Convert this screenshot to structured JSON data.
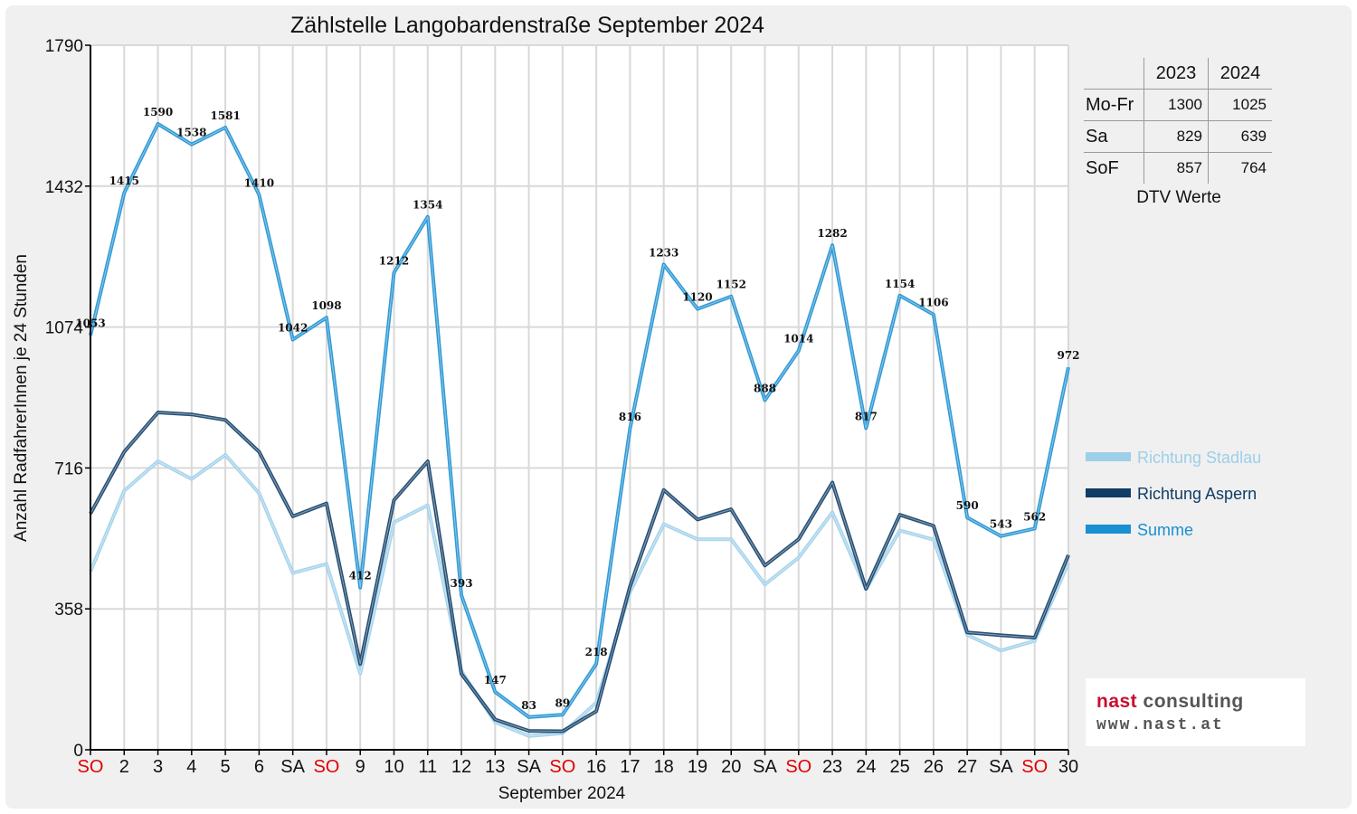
{
  "chart_data": {
    "type": "line",
    "title": "Zählstelle Langobardenstraße September 2024",
    "xlabel": "September 2024",
    "ylabel": "Anzahl RadfahrerInnen je 24 Stunden",
    "ylim": [
      0,
      1790
    ],
    "yticks": [
      "0",
      "358",
      "716",
      "1074",
      "1432",
      "1790"
    ],
    "grid": true,
    "legend_position": "right",
    "categories": [
      "SO",
      "2",
      "3",
      "4",
      "5",
      "6",
      "SA",
      "SO",
      "9",
      "10",
      "11",
      "12",
      "13",
      "SA",
      "SO",
      "16",
      "17",
      "18",
      "19",
      "20",
      "SA",
      "SO",
      "23",
      "24",
      "25",
      "26",
      "27",
      "SA",
      "SO",
      "30"
    ],
    "weekend_color": "#e00000",
    "series": [
      {
        "name": "Richtung Stadlau",
        "color": "#9dcfea",
        "values": [
          453,
          658,
          733,
          688,
          749,
          652,
          449,
          472,
          194,
          578,
          621,
          200,
          70,
          35,
          42,
          120,
          401,
          573,
          535,
          535,
          420,
          488,
          603,
          408,
          557,
          534,
          292,
          252,
          277,
          475
        ]
      },
      {
        "name": "Richtung Aspern",
        "color": "#0f3d66",
        "values": [
          600,
          757,
          857,
          852,
          838,
          757,
          593,
          626,
          218,
          634,
          733,
          193,
          77,
          48,
          47,
          98,
          415,
          660,
          585,
          611,
          468,
          535,
          679,
          409,
          597,
          569,
          298,
          291,
          285,
          495
        ]
      },
      {
        "name": "Summe",
        "color": "#1a8fd2",
        "values": [
          1053,
          1415,
          1590,
          1538,
          1581,
          1410,
          1042,
          1098,
          412,
          1212,
          1354,
          393,
          147,
          83,
          89,
          218,
          816,
          1233,
          1120,
          1152,
          888,
          1014,
          1282,
          817,
          1154,
          1106,
          590,
          543,
          562,
          972
        ]
      }
    ],
    "data_labels": [
      "1053",
      "1415",
      "1590",
      "1538",
      "1581",
      "1410",
      "1042",
      "1098",
      "412",
      "1212",
      "1354",
      "393",
      "147",
      "83",
      "89",
      "218",
      "816",
      "1233",
      "1120",
      "1152",
      "888",
      "1014",
      "1282",
      "817",
      "1154",
      "1106",
      "590",
      "543",
      "562",
      "972"
    ]
  },
  "dtv_table": {
    "header": [
      "",
      "2023",
      "2024"
    ],
    "rows": [
      {
        "label": "Mo-Fr",
        "v2023": "1300",
        "v2024": "1025"
      },
      {
        "label": "Sa",
        "v2023": "829",
        "v2024": "639"
      },
      {
        "label": "SoF",
        "v2023": "857",
        "v2024": "764"
      }
    ],
    "caption": "DTV Werte"
  },
  "logo": {
    "line1_word1": "nast",
    "line1_word2": "consulting",
    "line2": "www.nast.at"
  }
}
